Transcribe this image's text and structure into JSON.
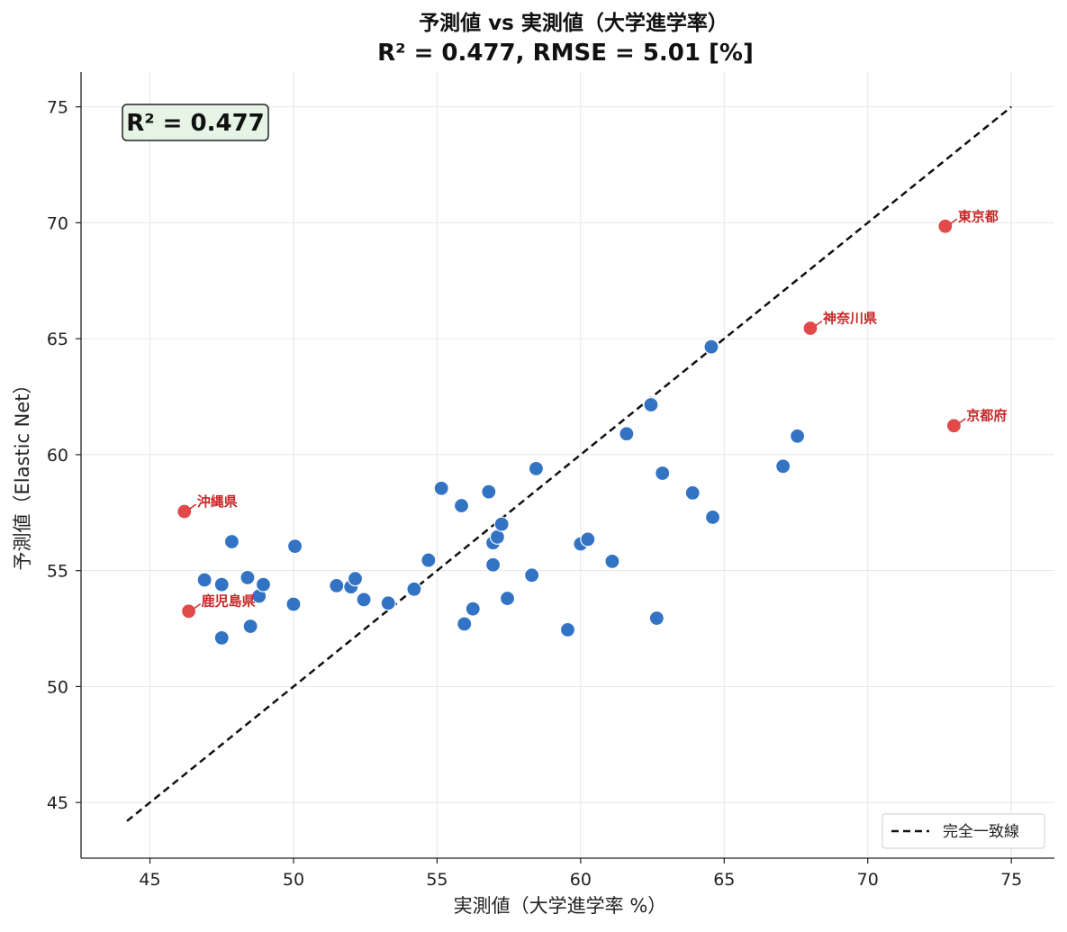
{
  "chart_data": {
    "type": "scatter",
    "title": "予測値 vs 実測値（大学進学率）",
    "subtitle": "R² = 0.477,  RMSE = 5.01 [%]",
    "xlabel": "実測値（大学進学率 %）",
    "ylabel": "予測値（Elastic Net）",
    "xlim": [
      42.6,
      76.5
    ],
    "ylim": [
      42.6,
      76.5
    ],
    "xticks": [
      45,
      50,
      55,
      60,
      65,
      70,
      75
    ],
    "yticks": [
      45,
      50,
      55,
      60,
      65,
      70,
      75
    ],
    "grid": true,
    "r2_box": "R² = 0.477",
    "legend": {
      "position": "bottom-right",
      "label": "完全一致線"
    },
    "colors": {
      "points": "#3273c4",
      "highlight": "#e24a4a",
      "annotation": "#c62828",
      "r2_box_bg": "#e6f4e6"
    },
    "reference_line": {
      "x": [
        44.2,
        75.0
      ],
      "y": [
        44.2,
        75.0
      ]
    },
    "points": [
      {
        "x": 46.9,
        "y": 54.6
      },
      {
        "x": 47.5,
        "y": 54.4
      },
      {
        "x": 47.85,
        "y": 56.25
      },
      {
        "x": 47.5,
        "y": 52.1
      },
      {
        "x": 48.4,
        "y": 54.7
      },
      {
        "x": 48.5,
        "y": 52.6
      },
      {
        "x": 48.8,
        "y": 53.9
      },
      {
        "x": 48.95,
        "y": 54.4
      },
      {
        "x": 50.0,
        "y": 53.55
      },
      {
        "x": 50.05,
        "y": 56.05
      },
      {
        "x": 51.5,
        "y": 54.35
      },
      {
        "x": 52.0,
        "y": 54.3
      },
      {
        "x": 52.15,
        "y": 54.65
      },
      {
        "x": 52.45,
        "y": 53.75
      },
      {
        "x": 53.3,
        "y": 53.6
      },
      {
        "x": 54.2,
        "y": 54.2
      },
      {
        "x": 54.7,
        "y": 55.45
      },
      {
        "x": 55.15,
        "y": 58.55
      },
      {
        "x": 55.85,
        "y": 57.8
      },
      {
        "x": 55.95,
        "y": 52.7
      },
      {
        "x": 56.25,
        "y": 53.35
      },
      {
        "x": 56.8,
        "y": 58.4
      },
      {
        "x": 56.95,
        "y": 55.25
      },
      {
        "x": 56.95,
        "y": 56.2
      },
      {
        "x": 57.1,
        "y": 56.45
      },
      {
        "x": 57.25,
        "y": 57.0
      },
      {
        "x": 57.45,
        "y": 53.8
      },
      {
        "x": 58.3,
        "y": 54.8
      },
      {
        "x": 58.45,
        "y": 59.4
      },
      {
        "x": 59.55,
        "y": 52.45
      },
      {
        "x": 60.0,
        "y": 56.15
      },
      {
        "x": 60.25,
        "y": 56.35
      },
      {
        "x": 61.1,
        "y": 55.4
      },
      {
        "x": 61.6,
        "y": 60.9
      },
      {
        "x": 62.45,
        "y": 62.15
      },
      {
        "x": 62.65,
        "y": 52.95
      },
      {
        "x": 62.85,
        "y": 59.2
      },
      {
        "x": 63.9,
        "y": 58.35
      },
      {
        "x": 64.55,
        "y": 64.65
      },
      {
        "x": 64.6,
        "y": 57.3
      },
      {
        "x": 67.05,
        "y": 59.5
      },
      {
        "x": 67.55,
        "y": 60.8
      }
    ],
    "highlighted": [
      {
        "label": "東京都",
        "x": 72.7,
        "y": 69.85
      },
      {
        "label": "神奈川県",
        "x": 68.0,
        "y": 65.45
      },
      {
        "label": "京都府",
        "x": 73.0,
        "y": 61.25
      },
      {
        "label": "沖縄県",
        "x": 46.2,
        "y": 57.55
      },
      {
        "label": "鹿児島県",
        "x": 46.35,
        "y": 53.25
      }
    ]
  }
}
